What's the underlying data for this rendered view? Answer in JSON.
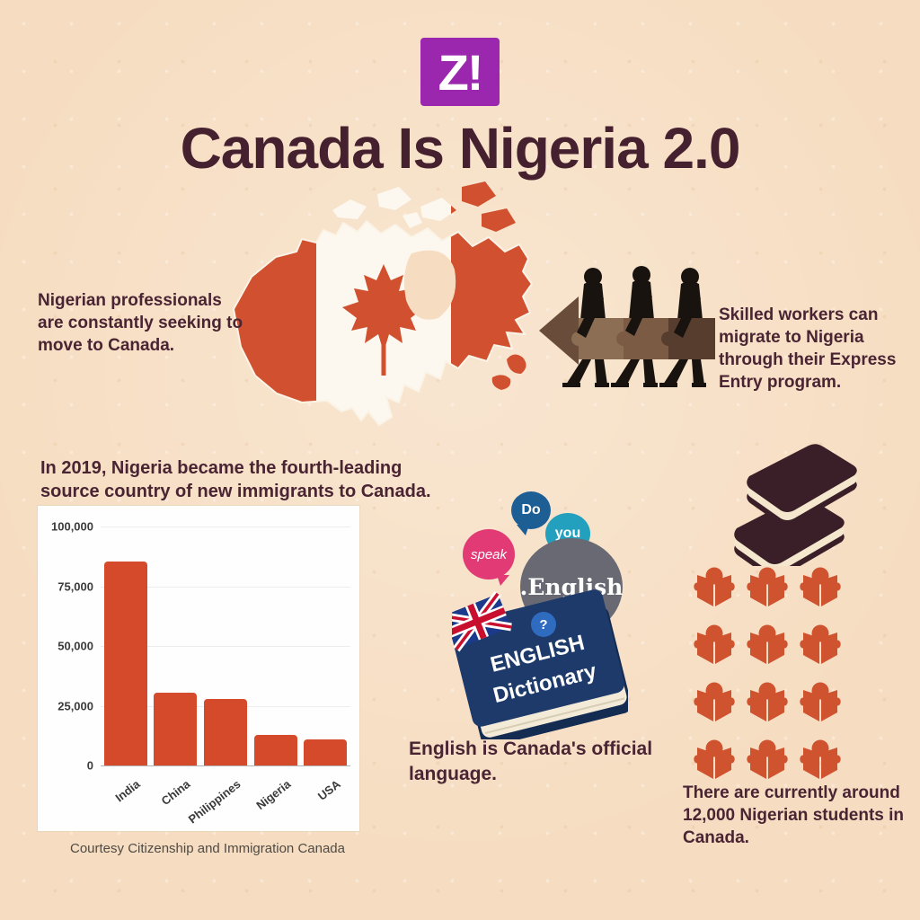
{
  "page": {
    "background": "#f6ddc1"
  },
  "logo": {
    "text": "Z!",
    "color": "#9b27ae"
  },
  "title": "Canada Is Nigeria 2.0",
  "texts": {
    "professionals": "Nigerian professionals are constantly seeking to move to Canada.",
    "skilled_workers": "Skilled workers can migrate to Nigeria through their Express Entry program.",
    "chart_heading": "In 2019, Nigeria became the fourth-leading source country of new immigrants to Canada.",
    "chart_caption": "Courtesy Citizenship and Immigration Canada",
    "official_language": "English is Canada's official language.",
    "students": "There are currently around 12,000 Nigerian students in Canada."
  },
  "chart_data": {
    "type": "bar",
    "categories": [
      "India",
      "China",
      "Philippines",
      "Nigeria",
      "USA"
    ],
    "values": [
      85500,
      30500,
      27800,
      12600,
      11000
    ],
    "title": "",
    "xlabel": "",
    "ylabel": "",
    "ylim": [
      0,
      100000
    ],
    "yticks": [
      {
        "value": 0,
        "label": "0"
      },
      {
        "value": 25000,
        "label": "25,000"
      },
      {
        "value": 50000,
        "label": "50,000"
      },
      {
        "value": 75000,
        "label": "75,000"
      },
      {
        "value": 100000,
        "label": "100,000"
      }
    ],
    "grid": true,
    "legend": false,
    "bar_color": "#d44a2a",
    "source": "Courtesy Citizenship and Immigration Canada"
  },
  "dictionary_graphic": {
    "bubbles": [
      {
        "text": "Do",
        "color": "#1d5e95"
      },
      {
        "text": "you",
        "color": "#22a0bd"
      },
      {
        "text": "speak",
        "color": "#e23a74"
      },
      {
        "text": ".English",
        "color": "#686973"
      },
      {
        "text": "?",
        "color": "#2f6cc0"
      }
    ],
    "book_title_line1": "ENGLISH",
    "book_title_line2": "Dictionary"
  },
  "students_grid": {
    "count": 12,
    "columns": 3,
    "icon": "reader-icon",
    "icon_color": "#d0532f"
  },
  "icons": {
    "logo": "z-exclamation-logo",
    "map": "canada-flag-map",
    "workers": "workers-carrying-arrow",
    "books": "books-stack",
    "reader": "person-reading-book",
    "flag": "union-jack"
  },
  "colors": {
    "accent_red": "#d0502f",
    "maroon_text": "#4a2433",
    "title_maroon": "#45202e",
    "purple_logo": "#9b27ae",
    "book_navy": "#1d3a6b",
    "background": "#f6ddc1"
  }
}
